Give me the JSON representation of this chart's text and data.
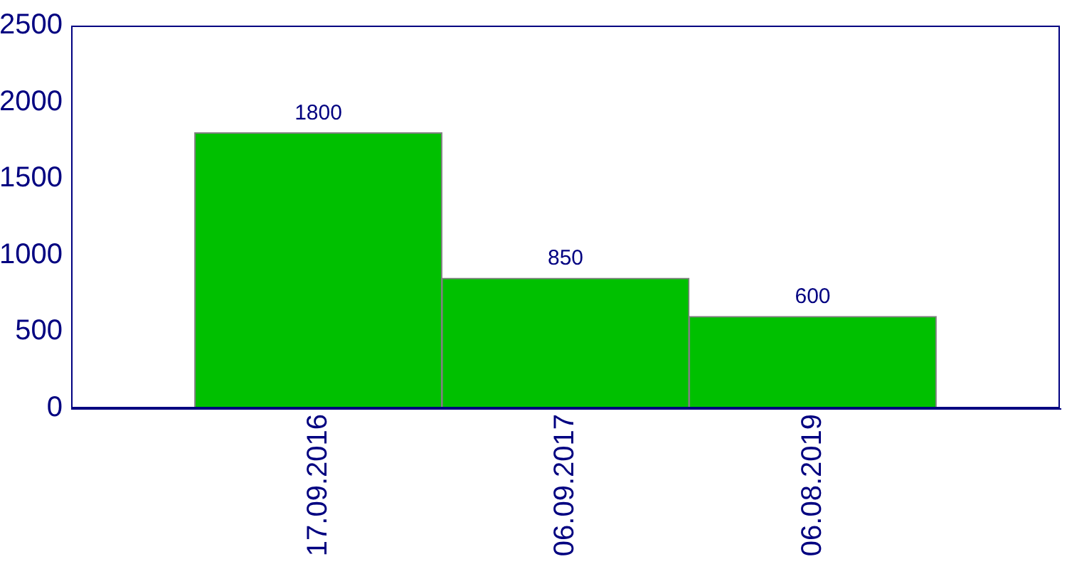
{
  "chart_data": {
    "type": "bar",
    "categories": [
      "17.09.2016",
      "06.09.2017",
      "06.08.2019"
    ],
    "values": [
      1800,
      850,
      600
    ],
    "color": "#00c000",
    "ylim": [
      0,
      2500
    ],
    "yticks": [
      0,
      500,
      1000,
      1500,
      2000,
      2500
    ],
    "data_labels": true
  }
}
